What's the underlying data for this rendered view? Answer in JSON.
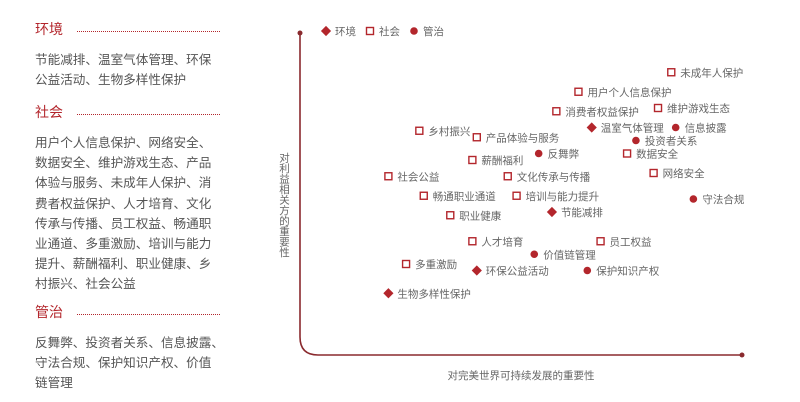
{
  "categories_panel": [
    {
      "title": "环境",
      "lines": [
        "节能减排、温室气体管理、环保",
        "公益活动、生物多样性保护"
      ]
    },
    {
      "title": "社会",
      "lines": [
        "用户个人信息保护、网络安全、",
        "数据安全、维护游戏生态、产品",
        "体验与服务、未成年人保护、消",
        "费者权益保护、人才培育、文化",
        "传承与传播、员工权益、畅通职",
        "业通道、多重激励、培训与能力",
        "提升、薪酬福利、职业健康、乡",
        "村振兴、社会公益"
      ]
    },
    {
      "title": "管治",
      "lines": [
        "反舞弊、投资者关系、信息披露、",
        "守法合规、保护知识产权、价值",
        "链管理"
      ]
    }
  ],
  "chart_data": {
    "type": "scatter",
    "xlabel": "对完美世界可持续发展的重要性",
    "ylabel": "对利益相关方的重要性",
    "xlim": [
      0,
      10
    ],
    "ylim": [
      0,
      10
    ],
    "grid": false,
    "legend_placement": "top-left",
    "colors": {
      "accent": "#b3262c",
      "axis": "#8a2a2e"
    },
    "legend": [
      {
        "name": "环境",
        "marker": "diamond"
      },
      {
        "name": "社会",
        "marker": "hollow-square"
      },
      {
        "name": "管治",
        "marker": "circle"
      }
    ],
    "points": [
      {
        "label": "未成年人保护",
        "group": "社会",
        "x": 8.4,
        "y": 8.7
      },
      {
        "label": "用户个人信息保护",
        "group": "社会",
        "x": 6.3,
        "y": 8.1
      },
      {
        "label": "消费者权益保护",
        "group": "社会",
        "x": 5.8,
        "y": 7.5
      },
      {
        "label": "维护游戏生态",
        "group": "社会",
        "x": 8.1,
        "y": 7.6
      },
      {
        "label": "温室气体管理",
        "group": "环境",
        "x": 6.6,
        "y": 7.0
      },
      {
        "label": "信息披露",
        "group": "管治",
        "x": 8.5,
        "y": 7.0
      },
      {
        "label": "乡村振兴",
        "group": "社会",
        "x": 2.7,
        "y": 6.9
      },
      {
        "label": "产品体验与服务",
        "group": "社会",
        "x": 4.0,
        "y": 6.7
      },
      {
        "label": "投资者关系",
        "group": "管治",
        "x": 7.6,
        "y": 6.6
      },
      {
        "label": "薪酬福利",
        "group": "社会",
        "x": 3.9,
        "y": 6.0
      },
      {
        "label": "反舞弊",
        "group": "管治",
        "x": 5.4,
        "y": 6.2
      },
      {
        "label": "数据安全",
        "group": "社会",
        "x": 7.4,
        "y": 6.2
      },
      {
        "label": "社会公益",
        "group": "社会",
        "x": 2.0,
        "y": 5.5
      },
      {
        "label": "文化传承与传播",
        "group": "社会",
        "x": 4.7,
        "y": 5.5
      },
      {
        "label": "网络安全",
        "group": "社会",
        "x": 8.0,
        "y": 5.6
      },
      {
        "label": "畅通职业通道",
        "group": "社会",
        "x": 2.8,
        "y": 4.9
      },
      {
        "label": "培训与能力提升",
        "group": "社会",
        "x": 4.9,
        "y": 4.9
      },
      {
        "label": "守法合规",
        "group": "管治",
        "x": 8.9,
        "y": 4.8
      },
      {
        "label": "职业健康",
        "group": "社会",
        "x": 3.4,
        "y": 4.3
      },
      {
        "label": "节能减排",
        "group": "环境",
        "x": 5.7,
        "y": 4.4
      },
      {
        "label": "人才培育",
        "group": "社会",
        "x": 3.9,
        "y": 3.5
      },
      {
        "label": "员工权益",
        "group": "社会",
        "x": 6.8,
        "y": 3.5
      },
      {
        "label": "价值链管理",
        "group": "管治",
        "x": 5.3,
        "y": 3.1
      },
      {
        "label": "多重激励",
        "group": "社会",
        "x": 2.4,
        "y": 2.8
      },
      {
        "label": "环保公益活动",
        "group": "环境",
        "x": 4.0,
        "y": 2.6
      },
      {
        "label": "保护知识产权",
        "group": "管治",
        "x": 6.5,
        "y": 2.6
      },
      {
        "label": "生物多样性保护",
        "group": "环境",
        "x": 2.0,
        "y": 1.9
      }
    ]
  }
}
